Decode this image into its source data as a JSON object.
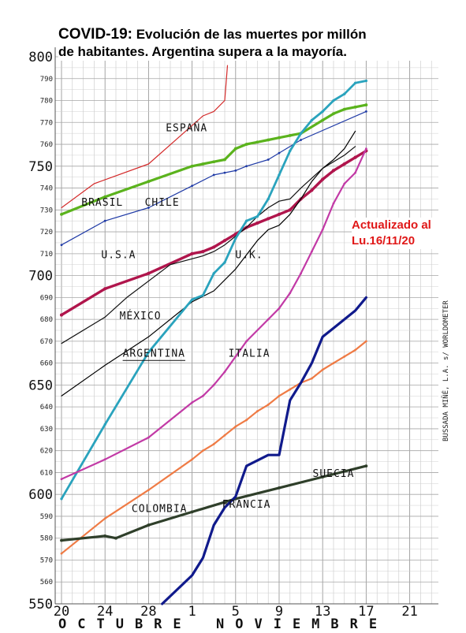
{
  "title": {
    "line1_prefix": "COVID-19:",
    "line1_rest": " Evolución de las muertes por millón",
    "line2": "de habitantes.  Argentina supera a la mayoría."
  },
  "update_note": {
    "line1": "Actualizado al",
    "line2": "Lu.16/11/20"
  },
  "months": {
    "october": "OCTUBRE",
    "november": "NOVIEMBRE"
  },
  "credit": "BUSSADA MIÑÉ, L.A. s/ WORLDOMETER",
  "chart_data": {
    "type": "line",
    "title": "COVID-19: Evolución de las muertes por millón de habitantes.  Argentina supera a la mayoría.",
    "xlabel": "",
    "ylabel": "",
    "x_ticks": [
      {
        "date": "2020-10-20",
        "label": "20"
      },
      {
        "date": "2020-10-24",
        "label": "24"
      },
      {
        "date": "2020-10-28",
        "label": "28"
      },
      {
        "date": "2020-11-01",
        "label": "1"
      },
      {
        "date": "2020-11-05",
        "label": "5"
      },
      {
        "date": "2020-11-09",
        "label": "9"
      },
      {
        "date": "2020-11-13",
        "label": "13"
      },
      {
        "date": "2020-11-17",
        "label": "17"
      },
      {
        "date": "2020-11-21",
        "label": "21"
      }
    ],
    "xlim": [
      "2020-10-20",
      "2020-11-22"
    ],
    "ylim": [
      550,
      800
    ],
    "y_major_labels": [
      550,
      600,
      650,
      700,
      750,
      800
    ],
    "y_minor_labels": [
      560,
      570,
      580,
      590,
      610,
      620,
      630,
      640,
      660,
      670,
      680,
      690,
      710,
      720,
      730,
      740,
      760,
      770,
      780,
      790
    ],
    "grid": true,
    "series": [
      {
        "name": "ESPAÑA",
        "color": "#d42a2a",
        "width": 1.2,
        "markers": false,
        "label_date": "2020-10-31T12:00",
        "label_value": 766,
        "points": [
          [
            "2020-10-20",
            731
          ],
          [
            "2020-10-23",
            742
          ],
          [
            "2020-10-28",
            751
          ],
          [
            "2020-11-02",
            773
          ],
          [
            "2020-11-03",
            775
          ],
          [
            "2020-11-04",
            780
          ],
          [
            "2020-11-04T06:00",
            796
          ]
        ]
      },
      {
        "name": "BRASIL",
        "color": "#5bb31d",
        "width": 3.2,
        "markers": true,
        "label_date": "2020-10-23T18:00",
        "label_value": 732,
        "points": [
          [
            "2020-10-20",
            728
          ],
          [
            "2020-10-24",
            736
          ],
          [
            "2020-10-28",
            743
          ],
          [
            "2020-11-01",
            750
          ],
          [
            "2020-11-02",
            751
          ],
          [
            "2020-11-03",
            752
          ],
          [
            "2020-11-04",
            753
          ],
          [
            "2020-11-05",
            758
          ],
          [
            "2020-11-06",
            760
          ],
          [
            "2020-11-07",
            761
          ],
          [
            "2020-11-08",
            762
          ],
          [
            "2020-11-09",
            763
          ],
          [
            "2020-11-10",
            764
          ],
          [
            "2020-11-11",
            765
          ],
          [
            "2020-11-13",
            771
          ],
          [
            "2020-11-14",
            774
          ],
          [
            "2020-11-15",
            776
          ],
          [
            "2020-11-16",
            777
          ],
          [
            "2020-11-17",
            778
          ]
        ]
      },
      {
        "name": "CHILE",
        "color": "#1f3aa6",
        "width": 1.2,
        "markers": true,
        "label_date": "2020-10-29T06:00",
        "label_value": 732,
        "points": [
          [
            "2020-10-20",
            714
          ],
          [
            "2020-10-24",
            725
          ],
          [
            "2020-10-28",
            731
          ],
          [
            "2020-11-01",
            741
          ],
          [
            "2020-11-03",
            746
          ],
          [
            "2020-11-04",
            747
          ],
          [
            "2020-11-05",
            748
          ],
          [
            "2020-11-06",
            750
          ],
          [
            "2020-11-08",
            753
          ],
          [
            "2020-11-09",
            756
          ],
          [
            "2020-11-11",
            762
          ],
          [
            "2020-11-17",
            775
          ]
        ]
      },
      {
        "name": "U.S.A",
        "color": "#b0154c",
        "width": 3.4,
        "markers": true,
        "label_date": "2020-10-25T06:00",
        "label_value": 708,
        "points": [
          [
            "2020-10-20",
            682
          ],
          [
            "2020-10-24",
            694
          ],
          [
            "2020-10-28",
            701
          ],
          [
            "2020-11-01",
            710
          ],
          [
            "2020-11-02",
            711
          ],
          [
            "2020-11-03",
            713
          ],
          [
            "2020-11-04",
            716
          ],
          [
            "2020-11-05",
            719
          ],
          [
            "2020-11-06",
            722
          ],
          [
            "2020-11-07",
            724
          ],
          [
            "2020-11-08",
            726
          ],
          [
            "2020-11-09",
            728
          ],
          [
            "2020-11-10",
            730
          ],
          [
            "2020-11-11",
            735
          ],
          [
            "2020-11-12",
            739
          ],
          [
            "2020-11-13",
            744
          ],
          [
            "2020-11-14",
            748
          ],
          [
            "2020-11-15",
            751
          ],
          [
            "2020-11-16",
            754
          ],
          [
            "2020-11-17",
            757
          ]
        ]
      },
      {
        "name": "U.K.",
        "color": "#000000",
        "width": 1.2,
        "markers": false,
        "label_date": "2020-11-06T06:00",
        "label_value": 708,
        "points": [
          [
            "2020-10-20",
            645
          ],
          [
            "2020-10-24",
            659
          ],
          [
            "2020-10-28",
            672
          ],
          [
            "2020-11-01",
            688
          ],
          [
            "2020-11-03",
            693
          ],
          [
            "2020-11-05",
            703
          ],
          [
            "2020-11-07",
            716
          ],
          [
            "2020-11-08",
            721
          ],
          [
            "2020-11-09",
            723
          ],
          [
            "2020-11-10",
            728
          ],
          [
            "2020-11-11",
            735
          ],
          [
            "2020-11-12",
            743
          ],
          [
            "2020-11-13",
            749
          ],
          [
            "2020-11-14",
            753
          ],
          [
            "2020-11-15",
            758
          ],
          [
            "2020-11-16",
            766
          ]
        ]
      },
      {
        "name": "MÉXICO",
        "color": "#111111",
        "width": 1.2,
        "markers": false,
        "label_date": "2020-10-27T06:00",
        "label_value": 680,
        "points": [
          [
            "2020-10-20",
            669
          ],
          [
            "2020-10-24",
            681
          ],
          [
            "2020-10-26",
            690
          ],
          [
            "2020-10-30",
            705
          ],
          [
            "2020-11-02",
            709
          ],
          [
            "2020-11-03",
            711
          ],
          [
            "2020-11-04",
            714
          ],
          [
            "2020-11-05",
            718
          ],
          [
            "2020-11-06",
            722
          ],
          [
            "2020-11-07",
            727
          ],
          [
            "2020-11-08",
            731
          ],
          [
            "2020-11-09",
            734
          ],
          [
            "2020-11-10",
            735
          ],
          [
            "2020-11-11",
            740
          ],
          [
            "2020-11-13",
            749
          ],
          [
            "2020-11-14",
            752
          ],
          [
            "2020-11-15",
            755
          ],
          [
            "2020-11-16",
            759
          ]
        ]
      },
      {
        "name": "ARGENTINA",
        "color": "#2aa3bd",
        "width": 2.8,
        "markers": true,
        "label_date": "2020-10-28T12:00",
        "label_value": 663,
        "points": [
          [
            "2020-10-20",
            598
          ],
          [
            "2020-10-24",
            632
          ],
          [
            "2020-10-28",
            665
          ],
          [
            "2020-11-01",
            689
          ],
          [
            "2020-11-02",
            691
          ],
          [
            "2020-11-03",
            701
          ],
          [
            "2020-11-04",
            706
          ],
          [
            "2020-11-05",
            717
          ],
          [
            "2020-11-06",
            725
          ],
          [
            "2020-11-07",
            727
          ],
          [
            "2020-11-08",
            735
          ],
          [
            "2020-11-09",
            746
          ],
          [
            "2020-11-10",
            757
          ],
          [
            "2020-11-11",
            765
          ],
          [
            "2020-11-12",
            771
          ],
          [
            "2020-11-13",
            775
          ],
          [
            "2020-11-14",
            780
          ],
          [
            "2020-11-15",
            783
          ],
          [
            "2020-11-16",
            788
          ],
          [
            "2020-11-17",
            789
          ]
        ]
      },
      {
        "name": "ITALIA",
        "color": "#c23aa6",
        "width": 2.2,
        "markers": true,
        "label_date": "2020-11-06T06:00",
        "label_value": 663,
        "points": [
          [
            "2020-10-20",
            607
          ],
          [
            "2020-10-24",
            616
          ],
          [
            "2020-10-28",
            626
          ],
          [
            "2020-11-01",
            642
          ],
          [
            "2020-11-02",
            645
          ],
          [
            "2020-11-03",
            650
          ],
          [
            "2020-11-04",
            656
          ],
          [
            "2020-11-05",
            663
          ],
          [
            "2020-11-06",
            670
          ],
          [
            "2020-11-08",
            680
          ],
          [
            "2020-11-09",
            685
          ],
          [
            "2020-11-10",
            692
          ],
          [
            "2020-11-11",
            701
          ],
          [
            "2020-11-12",
            711
          ],
          [
            "2020-11-13",
            721
          ],
          [
            "2020-11-14",
            733
          ],
          [
            "2020-11-15",
            742
          ],
          [
            "2020-11-16",
            747
          ],
          [
            "2020-11-17",
            758
          ]
        ]
      },
      {
        "name": "COLOMBIA",
        "color": "#ef7b45",
        "width": 2.2,
        "markers": true,
        "label_date": "2020-10-29",
        "label_value": 592,
        "points": [
          [
            "2020-10-20",
            573
          ],
          [
            "2020-10-24",
            589
          ],
          [
            "2020-10-28",
            602
          ],
          [
            "2020-11-01",
            616
          ],
          [
            "2020-11-02",
            620
          ],
          [
            "2020-11-03",
            623
          ],
          [
            "2020-11-04",
            627
          ],
          [
            "2020-11-05",
            631
          ],
          [
            "2020-11-06",
            634
          ],
          [
            "2020-11-07",
            638
          ],
          [
            "2020-11-08",
            641
          ],
          [
            "2020-11-09",
            645
          ],
          [
            "2020-11-10",
            648
          ],
          [
            "2020-11-11",
            651
          ],
          [
            "2020-11-12",
            653
          ],
          [
            "2020-11-13",
            657
          ],
          [
            "2020-11-14",
            660
          ],
          [
            "2020-11-15",
            663
          ],
          [
            "2020-11-16",
            666
          ],
          [
            "2020-11-17",
            670
          ]
        ]
      },
      {
        "name": "SUECIA",
        "color": "#2f3f2a",
        "width": 3.2,
        "markers": true,
        "label_date": "2020-11-14T00:00",
        "label_value": 608,
        "points": [
          [
            "2020-10-20",
            579
          ],
          [
            "2020-10-24",
            581
          ],
          [
            "2020-10-25",
            580
          ],
          [
            "2020-10-28",
            586
          ],
          [
            "2020-11-01",
            592
          ],
          [
            "2020-11-05",
            598
          ],
          [
            "2020-11-09",
            603
          ],
          [
            "2020-11-13",
            608
          ],
          [
            "2020-11-17",
            613
          ]
        ]
      },
      {
        "name": "FRANCIA",
        "color": "#101a8c",
        "width": 3.2,
        "markers": false,
        "label_date": "2020-11-06T00:00",
        "label_value": 594,
        "points": [
          [
            "2020-10-29T06:00",
            550
          ],
          [
            "2020-11-01",
            563
          ],
          [
            "2020-11-02",
            571
          ],
          [
            "2020-11-03",
            586
          ],
          [
            "2020-11-04",
            594
          ],
          [
            "2020-11-05",
            599
          ],
          [
            "2020-11-06",
            613
          ],
          [
            "2020-11-08",
            618
          ],
          [
            "2020-11-09",
            618
          ],
          [
            "2020-11-10",
            643
          ],
          [
            "2020-11-11",
            651
          ],
          [
            "2020-11-12",
            660
          ],
          [
            "2020-11-13",
            672
          ],
          [
            "2020-11-14",
            676
          ],
          [
            "2020-11-15",
            680
          ],
          [
            "2020-11-16",
            684
          ],
          [
            "2020-11-17",
            690
          ]
        ]
      }
    ]
  }
}
